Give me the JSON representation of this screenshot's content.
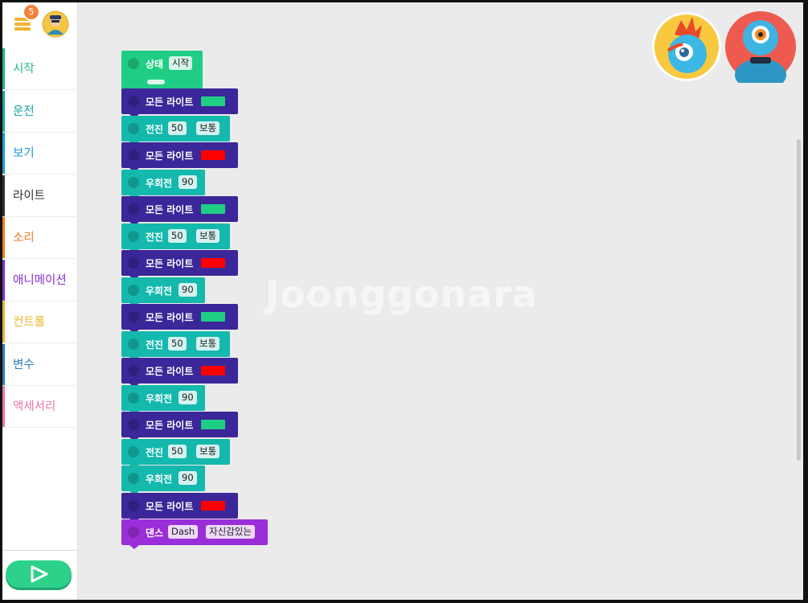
{
  "sidebar": {
    "badge_count": "5",
    "categories": [
      {
        "label": "시작",
        "color": "#22b58a"
      },
      {
        "label": "운전",
        "color": "#1aa7a0"
      },
      {
        "label": "보기",
        "color": "#1e9bd6"
      },
      {
        "label": "라이트",
        "color": "#333333"
      },
      {
        "label": "소리",
        "color": "#ef7b1f"
      },
      {
        "label": "애니메이션",
        "color": "#8b2fc9"
      },
      {
        "label": "컨트롤",
        "color": "#e9b52b"
      },
      {
        "label": "변수",
        "color": "#2b7bb8"
      },
      {
        "label": "액세서리",
        "color": "#e876a6"
      }
    ]
  },
  "workspace": {
    "watermark": "Joonggonara",
    "robots": [
      "dot-robot",
      "dash-robot"
    ]
  },
  "blocks": {
    "start": {
      "label": "상태",
      "value": "시작"
    },
    "stack": [
      {
        "type": "light",
        "label": "모든 라이트",
        "color": "#1fce84"
      },
      {
        "type": "drive",
        "label": "전진",
        "distance": "50",
        "speed": "보통"
      },
      {
        "type": "light",
        "label": "모든 라이트",
        "color": "#ff0000"
      },
      {
        "type": "turn",
        "label": "우회전",
        "angle": "90"
      },
      {
        "type": "light",
        "label": "모든 라이트",
        "color": "#1fce84"
      },
      {
        "type": "drive",
        "label": "전진",
        "distance": "50",
        "speed": "보통"
      },
      {
        "type": "light",
        "label": "모든 라이트",
        "color": "#ff0000"
      },
      {
        "type": "turn",
        "label": "우회전",
        "angle": "90"
      },
      {
        "type": "light",
        "label": "모든 라이트",
        "color": "#1fce84"
      },
      {
        "type": "drive",
        "label": "전진",
        "distance": "50",
        "speed": "보통"
      },
      {
        "type": "light",
        "label": "모든 라이트",
        "color": "#ff0000"
      },
      {
        "type": "turn",
        "label": "우회전",
        "angle": "90"
      },
      {
        "type": "light",
        "label": "모든 라이트",
        "color": "#1fce84"
      },
      {
        "type": "drive",
        "label": "전진",
        "distance": "50",
        "speed": "보통"
      },
      {
        "type": "turn",
        "label": "우회전",
        "angle": "90"
      },
      {
        "type": "light",
        "label": "모든 라이트",
        "color": "#ff0000"
      },
      {
        "type": "dance",
        "label": "댄스",
        "robot": "Dash",
        "style": "자신감있는"
      }
    ]
  }
}
